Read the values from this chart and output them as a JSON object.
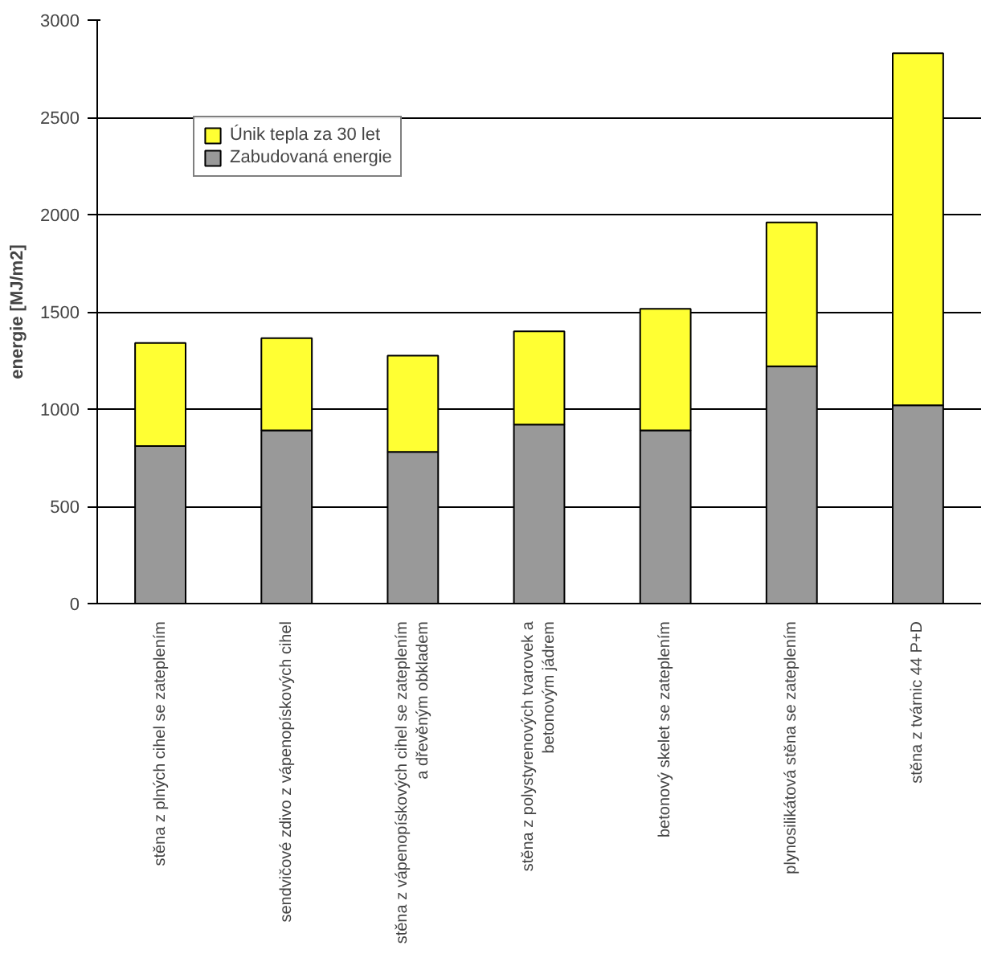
{
  "chart_data": {
    "type": "bar",
    "stacked": true,
    "ylabel": "energie [MJ/m2]",
    "categories": [
      "stěna z plných cihel se zateplením",
      "sendvičové zdivo z vápenopískových cihel",
      "stěna z vápenopískových cihel se zateplením\na dřevěným obkladem",
      "stěna z polystyrenových tvarovek a\nbetonovým jádrem",
      "betonový skelet se zateplením",
      "plynosilikátová stěna se zateplením",
      "stěna z tvárnic 44 P+D"
    ],
    "series": [
      {
        "name": "Zabudovaná energie",
        "color": "#999999",
        "values": [
          810,
          890,
          780,
          920,
          890,
          1220,
          1020
        ]
      },
      {
        "name": "Únik tepla za 30 let",
        "color": "#ffff33",
        "values": [
          530,
          475,
          495,
          480,
          625,
          740,
          1810
        ]
      }
    ],
    "ylim": [
      0,
      3000
    ],
    "yticks": [
      0,
      500,
      1000,
      1500,
      2000,
      2500,
      3000
    ],
    "grid": "y",
    "legend": "top left"
  }
}
